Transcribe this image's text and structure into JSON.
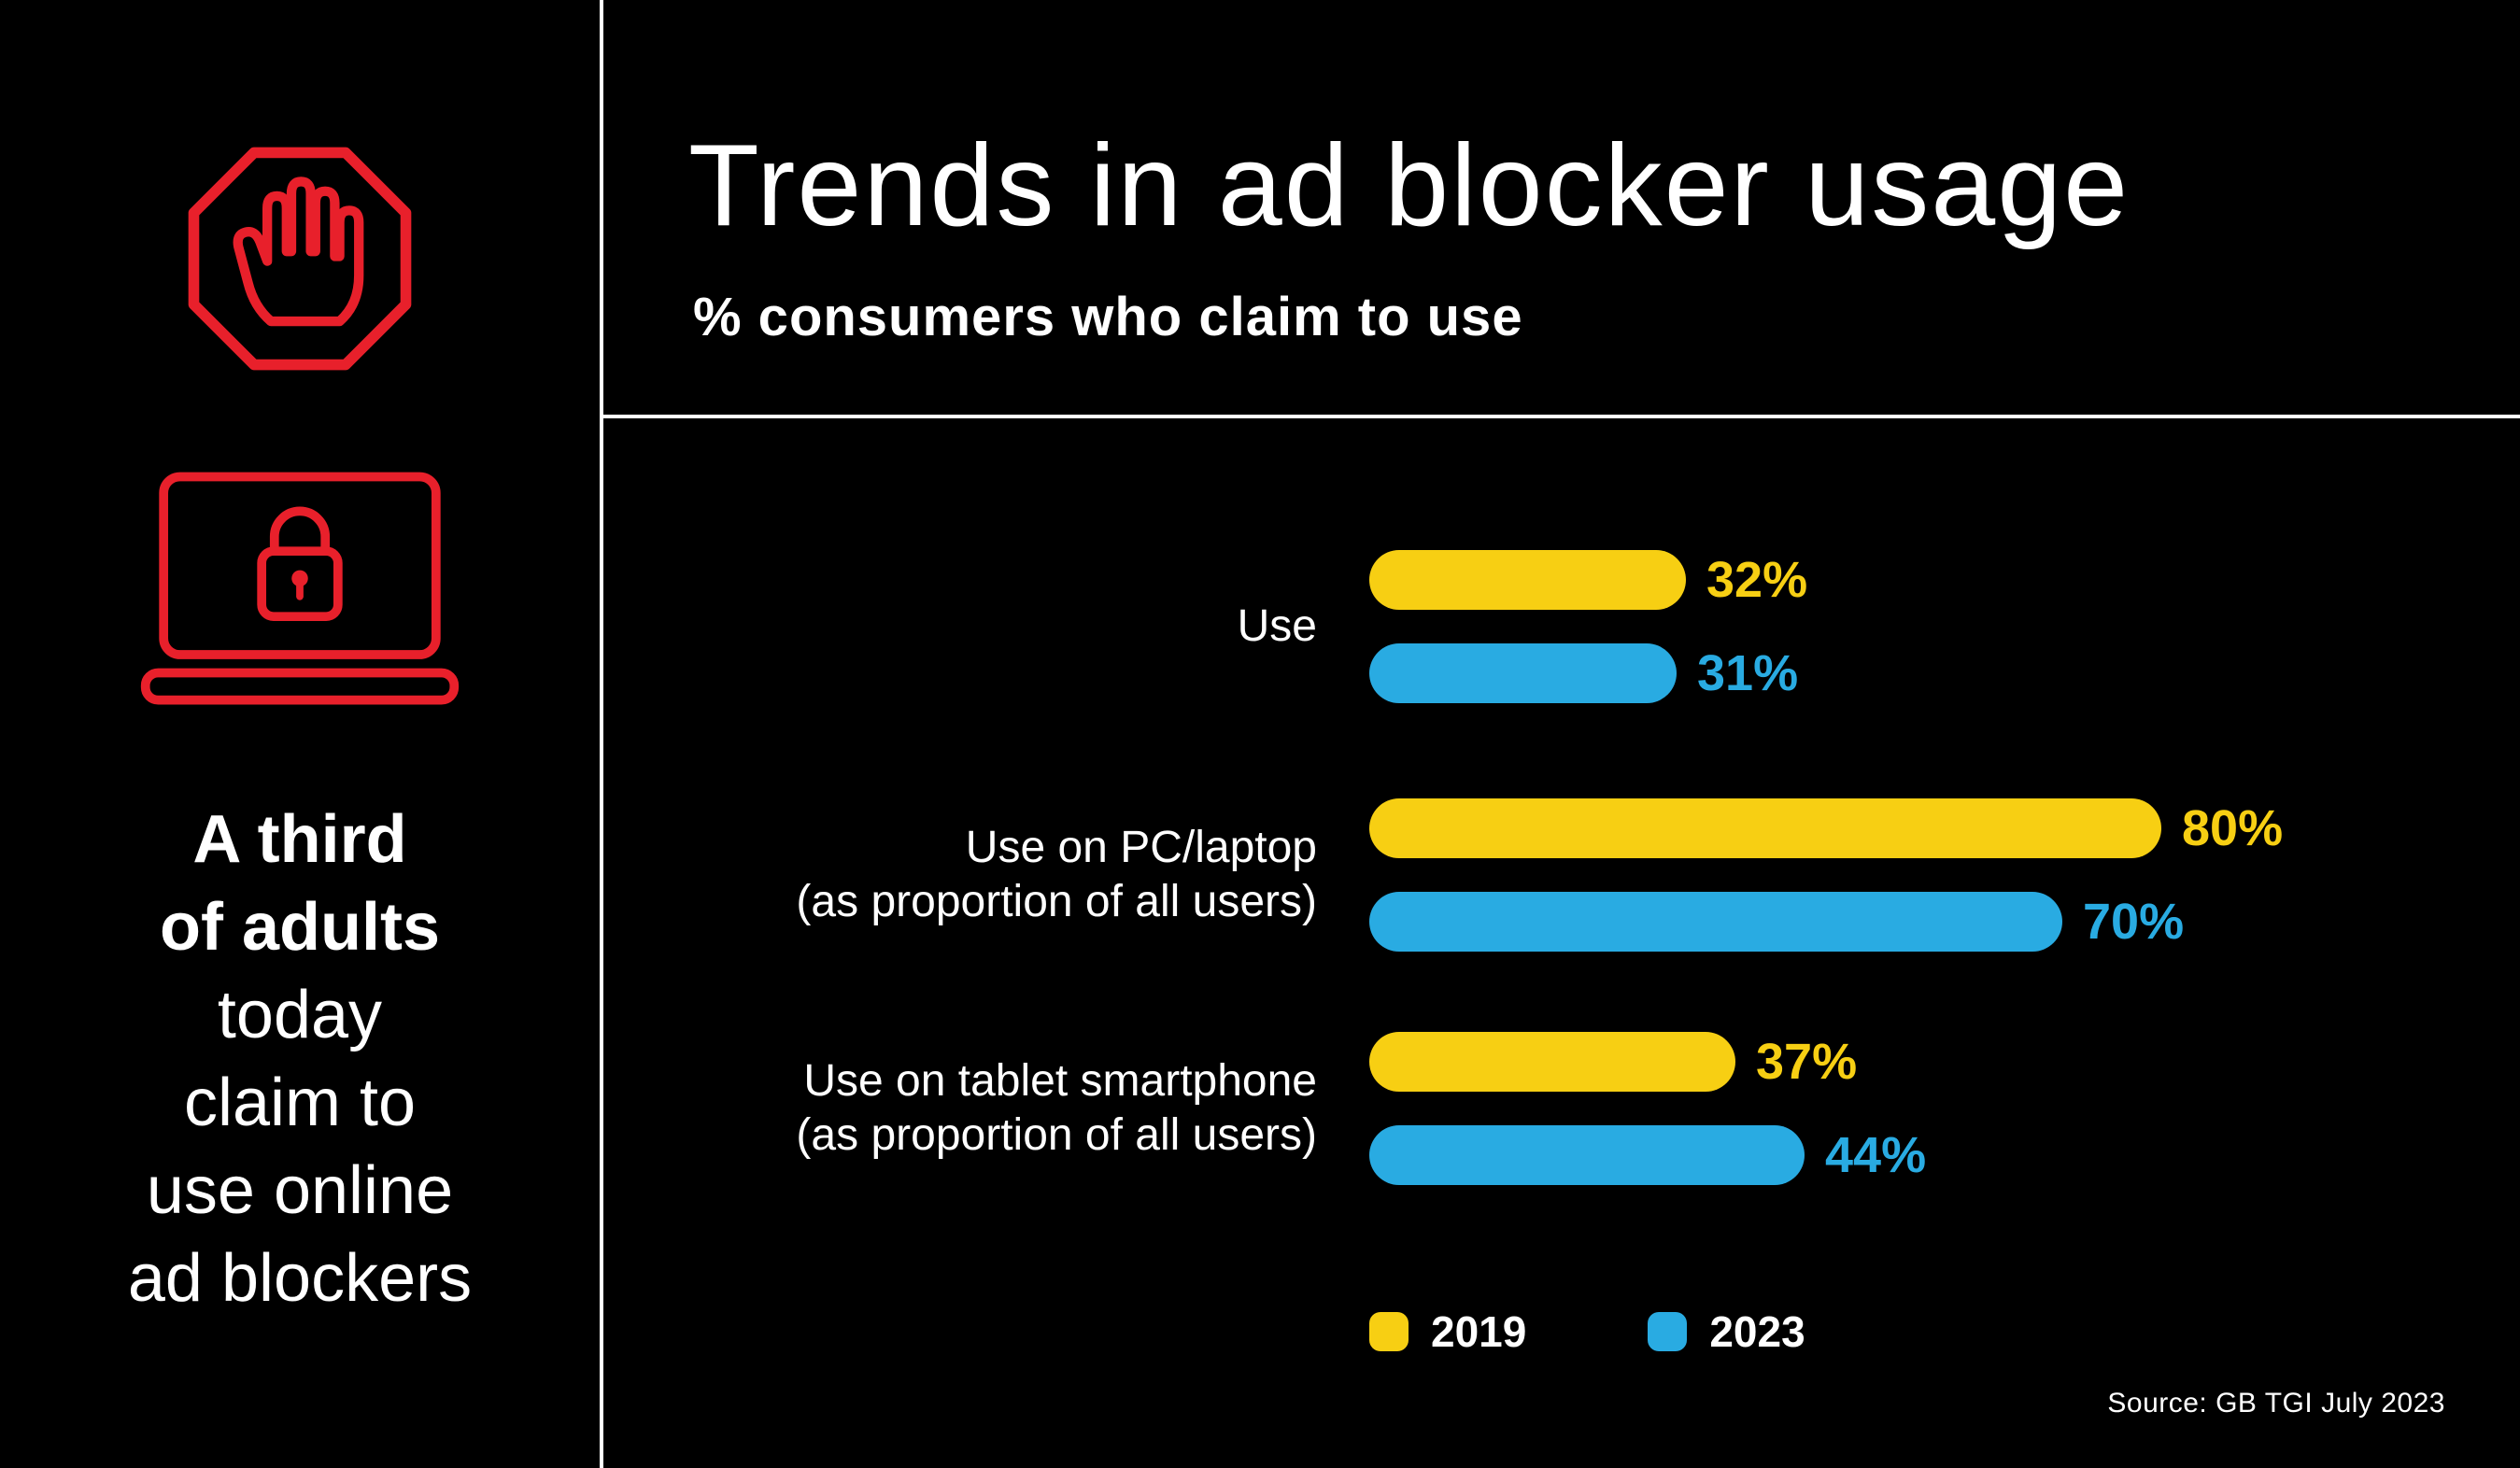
{
  "colors": {
    "background": "#000000",
    "accent_red": "#E8202B",
    "yellow_2019": "#F7CF13",
    "blue_2023": "#29ABE2",
    "text": "#FFFFFF"
  },
  "header": {
    "title": "Trends in ad blocker usage",
    "subtitle": "% consumers who claim to use"
  },
  "sidebar": {
    "icons": [
      "ad-block-hand-icon",
      "laptop-lock-icon"
    ],
    "caption_lines": [
      {
        "text": "A third",
        "bold": true
      },
      {
        "text": "of adults",
        "bold": true
      },
      {
        "text": "today",
        "bold": false
      },
      {
        "text": "claim to",
        "bold": false
      },
      {
        "text": "use online",
        "bold": false
      },
      {
        "text": "ad blockers",
        "bold": false
      }
    ]
  },
  "chart_data": {
    "type": "bar",
    "orientation": "horizontal",
    "title": "Trends in ad blocker usage",
    "subtitle": "% consumers who claim to use",
    "categories": [
      "Use",
      "Use on PC/laptop (as proportion of all users)",
      "Use on tablet smartphone (as proportion of all users)"
    ],
    "category_label_lines": [
      [
        "Use"
      ],
      [
        "Use on PC/laptop",
        "(as proportion of all users)"
      ],
      [
        "Use on tablet smartphone",
        "(as proportion of all users)"
      ]
    ],
    "series": [
      {
        "name": "2019",
        "color": "#F7CF13",
        "values": [
          32,
          80,
          37
        ]
      },
      {
        "name": "2023",
        "color": "#29ABE2",
        "values": [
          31,
          70,
          44
        ]
      }
    ],
    "value_suffix": "%",
    "value_range": [
      0,
      100
    ],
    "axis_visible": false,
    "grid": false,
    "legend_position": "bottom"
  },
  "legend": [
    {
      "label": "2019",
      "color": "#F7CF13"
    },
    {
      "label": "2023",
      "color": "#29ABE2"
    }
  ],
  "source": "Source: GB TGI July 2023"
}
